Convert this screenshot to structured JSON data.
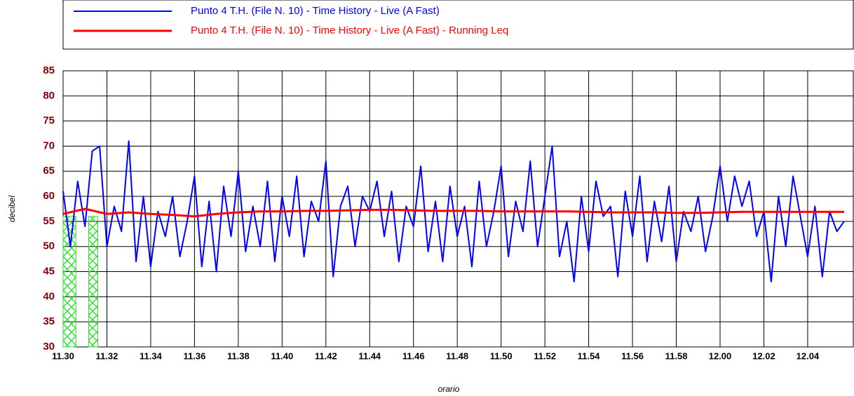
{
  "chart_data": {
    "type": "line",
    "x_label": "orario",
    "y_label": "decibel",
    "xlim": [
      "11.30.00",
      "12.06.05"
    ],
    "xticks": [
      "11.30",
      "11.32",
      "11.34",
      "11.36",
      "11.38",
      "11.40",
      "11.42",
      "11.44",
      "11.46",
      "11.48",
      "11.50",
      "11.52",
      "11.54",
      "11.56",
      "11.58",
      "12.00",
      "12.02",
      "12.04"
    ],
    "ylim": [
      30,
      85
    ],
    "yticks": [
      30,
      35,
      40,
      45,
      50,
      55,
      60,
      65,
      70,
      75,
      80,
      85
    ],
    "grid": true,
    "highlight_color": "#33dd33",
    "highlight_top": 56,
    "highlight_ranges": [
      [
        "11.30.00",
        "11.30.35"
      ],
      [
        "11.31.10",
        "11.31.35"
      ]
    ],
    "series": [
      {
        "name": "Punto 4 T.H.  (File N. 10) - Time History - Live (A Fast)",
        "color": "#0000ff",
        "x": [
          "11.30.00",
          "11.30.20",
          "11.30.40",
          "11.31.00",
          "11.31.20",
          "11.31.40",
          "11.32.00",
          "11.32.20",
          "11.32.40",
          "11.33.00",
          "11.33.20",
          "11.33.40",
          "11.34.00",
          "11.34.20",
          "11.34.40",
          "11.35.00",
          "11.35.20",
          "11.35.40",
          "11.36.00",
          "11.36.20",
          "11.36.40",
          "11.37.00",
          "11.37.20",
          "11.37.40",
          "11.38.00",
          "11.38.20",
          "11.38.40",
          "11.39.00",
          "11.39.20",
          "11.39.40",
          "11.40.00",
          "11.40.20",
          "11.40.40",
          "11.41.00",
          "11.41.20",
          "11.41.40",
          "11.42.00",
          "11.42.20",
          "11.42.40",
          "11.43.00",
          "11.43.20",
          "11.43.40",
          "11.44.00",
          "11.44.20",
          "11.44.40",
          "11.45.00",
          "11.45.20",
          "11.45.40",
          "11.46.00",
          "11.46.20",
          "11.46.40",
          "11.47.00",
          "11.47.20",
          "11.47.40",
          "11.48.00",
          "11.48.20",
          "11.48.40",
          "11.49.00",
          "11.49.20",
          "11.49.40",
          "11.50.00",
          "11.50.20",
          "11.50.40",
          "11.51.00",
          "11.51.20",
          "11.51.40",
          "11.52.00",
          "11.52.20",
          "11.52.40",
          "11.53.00",
          "11.53.20",
          "11.53.40",
          "11.54.00",
          "11.54.20",
          "11.54.40",
          "11.55.00",
          "11.55.20",
          "11.55.40",
          "11.56.00",
          "11.56.20",
          "11.56.40",
          "11.57.00",
          "11.57.20",
          "11.57.40",
          "11.58.00",
          "11.58.20",
          "11.58.40",
          "11.59.00",
          "11.59.20",
          "11.59.40",
          "12.00.00",
          "12.00.20",
          "12.00.40",
          "12.01.00",
          "12.01.20",
          "12.01.40",
          "12.02.00",
          "12.02.20",
          "12.02.40",
          "12.03.00",
          "12.03.20",
          "12.03.40",
          "12.04.00",
          "12.04.20",
          "12.04.40",
          "12.05.00",
          "12.05.20",
          "12.05.40"
        ],
        "values": [
          61,
          50,
          63,
          54,
          69,
          70,
          50,
          58,
          53,
          71,
          47,
          60,
          46,
          57,
          52,
          60,
          48,
          55,
          64,
          46,
          59,
          45,
          62,
          52,
          65,
          49,
          58,
          50,
          63,
          47,
          60,
          52,
          64,
          48,
          59,
          55,
          67,
          44,
          58,
          62,
          50,
          60,
          57,
          63,
          52,
          61,
          47,
          58,
          54,
          66,
          49,
          59,
          47,
          62,
          52,
          58,
          46,
          63,
          50,
          57,
          66,
          48,
          59,
          53,
          67,
          50,
          60,
          70,
          48,
          55,
          43,
          60,
          49,
          63,
          56,
          58,
          44,
          61,
          52,
          64,
          47,
          59,
          51,
          62,
          47,
          57,
          53,
          60,
          49,
          56,
          66,
          55,
          64,
          58,
          63,
          52,
          57,
          43,
          60,
          50,
          64,
          56,
          48,
          58,
          44,
          57,
          53,
          55
        ]
      },
      {
        "name": "Punto 4 T.H.  (File N. 10) - Time History - Live (A Fast) - Running Leq",
        "color": "#ff0000",
        "x": [
          "11.30.00",
          "11.31.00",
          "11.32.00",
          "11.33.00",
          "11.34.00",
          "11.35.00",
          "11.36.00",
          "11.37.00",
          "11.38.00",
          "11.39.00",
          "11.40.00",
          "11.41.00",
          "11.42.00",
          "11.43.00",
          "11.44.00",
          "11.45.00",
          "11.46.00",
          "11.47.00",
          "11.48.00",
          "11.49.00",
          "11.50.00",
          "11.51.00",
          "11.52.00",
          "11.53.00",
          "11.54.00",
          "11.55.00",
          "11.56.00",
          "11.57.00",
          "11.58.00",
          "11.59.00",
          "12.00.00",
          "12.01.00",
          "12.02.00",
          "12.03.00",
          "12.04.00",
          "12.05.00",
          "12.05.40"
        ],
        "values": [
          56.5,
          57.5,
          56.5,
          56.8,
          56.5,
          56.3,
          56.0,
          56.5,
          56.8,
          57.0,
          57.0,
          57.1,
          57.1,
          57.2,
          57.3,
          57.3,
          57.2,
          57.1,
          57.1,
          57.1,
          57.0,
          57.0,
          57.0,
          57.0,
          56.9,
          56.8,
          56.8,
          56.8,
          56.7,
          56.7,
          56.8,
          56.9,
          56.9,
          56.9,
          56.9,
          56.9,
          56.9
        ]
      }
    ]
  }
}
